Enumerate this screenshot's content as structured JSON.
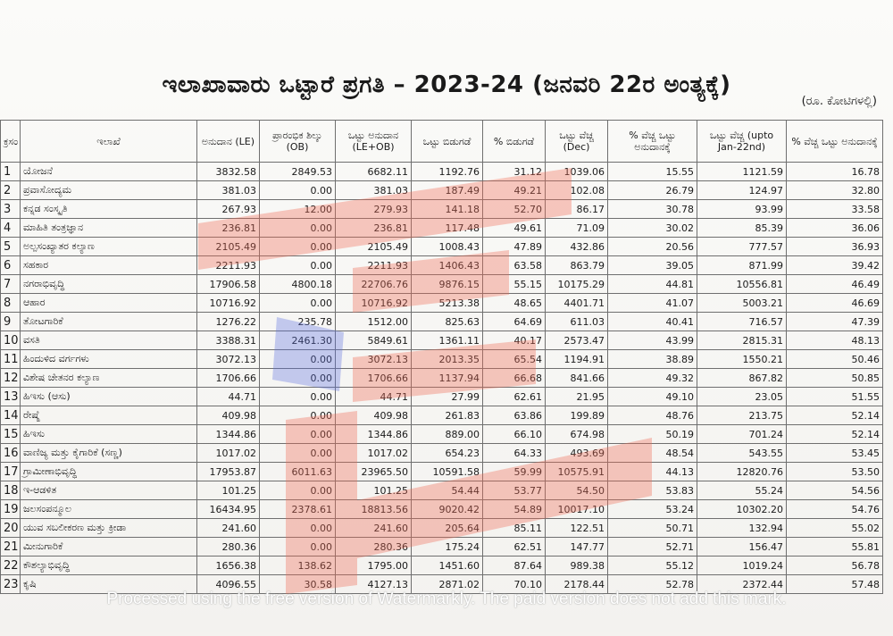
{
  "title": "ಇಲಾಖಾವಾರು ಒಟ್ಟಾರೆ ಪ್ರಗತಿ – 2023-24 (ಜನವರಿ 22ರ ಅಂತ್ಯಕ್ಕೆ)",
  "unit": "(ರೂ. ಕೋಟಿಗಳಲ್ಲಿ)",
  "headers": [
    "ಕ್ರಸಂ",
    "ಇಲಾಖೆ",
    "ಅನುದಾನ (LE)",
    "ಪ್ರಾರಂಭಿಕ ಶಿಲ್ಕು (OB)",
    "ಒಟ್ಟು ಅನುದಾನ (LE+OB)",
    "ಒಟ್ಟು ಬಿಡುಗಡೆ",
    "% ಬಿಡುಗಡೆ",
    "ಒಟ್ಟು ವೆಚ್ಚ (Dec)",
    "% ವೆಚ್ಚ ಒಟ್ಟು ಅನುದಾನಕ್ಕೆ",
    "ಒಟ್ಟು ವೆಚ್ಚ (upto Jan-22nd)",
    "% ವೆಚ್ಚ ಒಟ್ಟು ಅನುದಾನಕ್ಕೆ"
  ],
  "rows": [
    [
      "1",
      "ಯೋಜನೆ",
      "3832.58",
      "2849.53",
      "6682.11",
      "1192.76",
      "31.12",
      "1039.06",
      "15.55",
      "1121.59",
      "16.78"
    ],
    [
      "2",
      "ಪ್ರವಾಸೋದ್ಯಮ",
      "381.03",
      "0.00",
      "381.03",
      "187.49",
      "49.21",
      "102.08",
      "26.79",
      "124.97",
      "32.80"
    ],
    [
      "3",
      "ಕನ್ನಡ ಸಂಸ್ಕೃತಿ",
      "267.93",
      "12.00",
      "279.93",
      "141.18",
      "52.70",
      "86.17",
      "30.78",
      "93.99",
      "33.58"
    ],
    [
      "4",
      "ಮಾಹಿತಿ ತಂತ್ರಜ್ಞಾನ",
      "236.81",
      "0.00",
      "236.81",
      "117.48",
      "49.61",
      "71.09",
      "30.02",
      "85.39",
      "36.06"
    ],
    [
      "5",
      "ಅಲ್ಪಸಂಖ್ಯಾತರ ಕಲ್ಯಾಣ",
      "2105.49",
      "0.00",
      "2105.49",
      "1008.43",
      "47.89",
      "432.86",
      "20.56",
      "777.57",
      "36.93"
    ],
    [
      "6",
      "ಸಹಕಾರ",
      "2211.93",
      "0.00",
      "2211.93",
      "1406.43",
      "63.58",
      "863.79",
      "39.05",
      "871.99",
      "39.42"
    ],
    [
      "7",
      "ನಗರಾಭಿವೃದ್ಧಿ",
      "17906.58",
      "4800.18",
      "22706.76",
      "9876.15",
      "55.15",
      "10175.29",
      "44.81",
      "10556.81",
      "46.49"
    ],
    [
      "8",
      "ಆಹಾರ",
      "10716.92",
      "0.00",
      "10716.92",
      "5213.38",
      "48.65",
      "4401.71",
      "41.07",
      "5003.21",
      "46.69"
    ],
    [
      "9",
      "ತೋಟಗಾರಿಕೆ",
      "1276.22",
      "235.78",
      "1512.00",
      "825.63",
      "64.69",
      "611.03",
      "40.41",
      "716.57",
      "47.39"
    ],
    [
      "10",
      "ವಸತಿ",
      "3388.31",
      "2461.30",
      "5849.61",
      "1361.11",
      "40.17",
      "2573.47",
      "43.99",
      "2815.31",
      "48.13"
    ],
    [
      "11",
      "ಹಿಂದುಳಿದ ವರ್ಗಗಳು",
      "3072.13",
      "0.00",
      "3072.13",
      "2013.35",
      "65.54",
      "1194.91",
      "38.89",
      "1550.21",
      "50.46"
    ],
    [
      "12",
      "ವಿಶೇಷ ಚೇತನರ ಕಲ್ಯಾಣ",
      "1706.66",
      "0.00",
      "1706.66",
      "1137.94",
      "66.68",
      "841.66",
      "49.32",
      "867.82",
      "50.85"
    ],
    [
      "13",
      "ಹಿಇಸು (ಆಸು)",
      "44.71",
      "0.00",
      "44.71",
      "27.99",
      "62.61",
      "21.95",
      "49.10",
      "23.05",
      "51.55"
    ],
    [
      "14",
      "ರೇಷ್ಮೆ",
      "409.98",
      "0.00",
      "409.98",
      "261.83",
      "63.86",
      "199.89",
      "48.76",
      "213.75",
      "52.14"
    ],
    [
      "15",
      "ಹಿಇಸು",
      "1344.86",
      "0.00",
      "1344.86",
      "889.00",
      "66.10",
      "674.98",
      "50.19",
      "701.24",
      "52.14"
    ],
    [
      "16",
      "ವಾಣಿಜ್ಯ ಮತ್ತು ಕೈಗಾರಿಕೆ (ಸಣ್ಣ)",
      "1017.02",
      "0.00",
      "1017.02",
      "654.23",
      "64.33",
      "493.69",
      "48.54",
      "543.55",
      "53.45"
    ],
    [
      "17",
      "ಗ್ರಾಮೀಣಾಭಿವೃದ್ಧಿ",
      "17953.87",
      "6011.63",
      "23965.50",
      "10591.58",
      "59.99",
      "10575.91",
      "44.13",
      "12820.76",
      "53.50"
    ],
    [
      "18",
      "ಇ-ಆಡಳಿತ",
      "101.25",
      "0.00",
      "101.25",
      "54.44",
      "53.77",
      "54.50",
      "53.83",
      "55.24",
      "54.56"
    ],
    [
      "19",
      "ಜಲಸಂಪನ್ಮೂಲ",
      "16434.95",
      "2378.61",
      "18813.56",
      "9020.42",
      "54.89",
      "10017.10",
      "53.24",
      "10302.20",
      "54.76"
    ],
    [
      "20",
      "ಯುವ ಸಬಲೀಕರಣ ಮತ್ತು ಕ್ರೀಡಾ",
      "241.60",
      "0.00",
      "241.60",
      "205.64",
      "85.11",
      "122.51",
      "50.71",
      "132.94",
      "55.02"
    ],
    [
      "21",
      "ಮೀನುಗಾರಿಕೆ",
      "280.36",
      "0.00",
      "280.36",
      "175.24",
      "62.51",
      "147.77",
      "52.71",
      "156.47",
      "55.81"
    ],
    [
      "22",
      "ಕೌಶಲ್ಯಾಭಿವೃದ್ಧಿ",
      "1656.38",
      "138.62",
      "1795.00",
      "1451.60",
      "87.64",
      "989.38",
      "55.12",
      "1019.24",
      "56.78"
    ],
    [
      "23",
      "ಕೃಷಿ",
      "4096.55",
      "30.58",
      "4127.13",
      "2871.02",
      "70.10",
      "2178.44",
      "52.78",
      "2372.44",
      "57.48"
    ]
  ],
  "watermark": "Processed using the free version of Watermarkly. The paid version does not add this mark.",
  "colors": {
    "logo_red": "#ee6a55",
    "logo_blue": "#5b6fe0"
  }
}
